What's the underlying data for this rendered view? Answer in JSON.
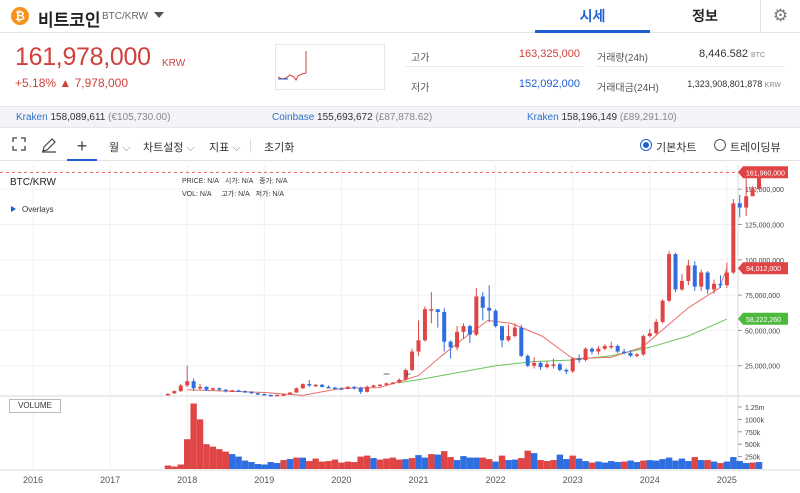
{
  "header": {
    "coin_symbol": "₿",
    "coin_name": "비트코인",
    "pair": "BTC/KRW",
    "tabs": [
      {
        "label": "시세",
        "active": true
      },
      {
        "label": "정보",
        "active": false
      }
    ],
    "settings_icon": "gear-icon"
  },
  "price": {
    "value": "161,978,000",
    "unit": "KRW",
    "change_pct": "+5.18%",
    "change_amt": "▲ 7,978,000"
  },
  "stats": {
    "high_label": "고가",
    "high_value": "163,325,000",
    "low_label": "저가",
    "low_value": "152,092,000",
    "volume_label": "거래량(24h)",
    "volume_value": "8,446.582",
    "volume_unit": "BTC",
    "amount_label": "거래대금(24H)",
    "amount_value": "1,323,908,801,878",
    "amount_unit": "KRW"
  },
  "exchanges": [
    {
      "name": "Kraken",
      "value": "158,089,611",
      "alt": "(€105,730.00)"
    },
    {
      "name": "Coinbase",
      "value": "155,693,672",
      "alt": "(£87,878.62)"
    },
    {
      "name": "Kraken",
      "value": "158,196,149",
      "alt": "(£89,291.10)"
    }
  ],
  "toolbar": {
    "interval": "월",
    "chart_settings": "차트설정",
    "indicators": "지표",
    "reset": "초기화",
    "basic_chart": "기본차트",
    "tradingview": "트레이딩뷰"
  },
  "hud": {
    "price_label": "PRICE:",
    "open_label": "시가:",
    "close_label": "종가:",
    "vol_label": "VOL:",
    "high_label": "고가:",
    "low_label": "저가:",
    "na": "N/A"
  },
  "colors": {
    "up": "#e04545",
    "down": "#2f6ee0",
    "ma_short": "#e8706a",
    "ma_long": "#6cc35a",
    "accent": "#1c5fd1"
  },
  "chart_data": {
    "type": "candlestick",
    "title": "BTC/KRW",
    "overlays_label": "Overlays",
    "volume_label": "VOLUME",
    "x_ticks": [
      "2016",
      "2017",
      "2018",
      "2019",
      "2020",
      "2021",
      "2022",
      "2023",
      "2024",
      "2025"
    ],
    "y_ticks": [
      "150,000,000",
      "125,000,000",
      "100,000,000",
      "75,000,000",
      "50,000,000",
      "25,000,000"
    ],
    "y_range": [
      0,
      165000000
    ],
    "volume_ticks": [
      "1.25m",
      "1000k",
      "750k",
      "500k",
      "250k"
    ],
    "volume_range": [
      0,
      1350000
    ],
    "price_tags": [
      {
        "label": "161,960,000",
        "value": 161960000,
        "color": "#e04545",
        "dashed": true
      },
      {
        "label": "94,012,000",
        "value": 94012000,
        "color": "#e04545",
        "dashed": false
      },
      {
        "label": "58,222,260",
        "value": 58222260,
        "color": "#4cbb3c",
        "dashed": false
      }
    ],
    "series": [
      {
        "name": "BTC/KRW",
        "x_start": 2017.75,
        "step_months": 1,
        "ohlc": [
          [
            5,
            5,
            4.5,
            5.5
          ],
          [
            5.5,
            7,
            5,
            7.5
          ],
          [
            7,
            11,
            6.5,
            12
          ],
          [
            11,
            14,
            10,
            25
          ],
          [
            14,
            9,
            7,
            16
          ],
          [
            9,
            10,
            8,
            12
          ],
          [
            10,
            8,
            7,
            10.5
          ],
          [
            8,
            9,
            7.5,
            9.5
          ],
          [
            9,
            8,
            7,
            9.5
          ],
          [
            8,
            7,
            6,
            8.5
          ],
          [
            7,
            7.5,
            6.5,
            8
          ],
          [
            7.5,
            7,
            6.5,
            8
          ],
          [
            7,
            6.5,
            6,
            7.5
          ],
          [
            6.5,
            5.5,
            5,
            7
          ],
          [
            5.5,
            5,
            4.5,
            6
          ],
          [
            5,
            4.3,
            4,
            5.2
          ],
          [
            4.3,
            4,
            3.5,
            4.6
          ],
          [
            4,
            4.4,
            3.8,
            4.6
          ],
          [
            4.4,
            4.6,
            4.2,
            5
          ],
          [
            4.6,
            6,
            4.4,
            6.2
          ],
          [
            6,
            9,
            5.8,
            9.5
          ],
          [
            9,
            12,
            8.5,
            12.5
          ],
          [
            12,
            11,
            10,
            15
          ],
          [
            11,
            11.5,
            10,
            12
          ],
          [
            11.5,
            10,
            9.5,
            12
          ],
          [
            10,
            9.5,
            9,
            11
          ],
          [
            9.5,
            9,
            8.5,
            10
          ],
          [
            9,
            8.5,
            8,
            9.5
          ],
          [
            8.5,
            10,
            8.3,
            10.5
          ],
          [
            10,
            9.5,
            8,
            10.5
          ],
          [
            9.5,
            6.5,
            5,
            10
          ],
          [
            6.5,
            10,
            6,
            11
          ],
          [
            10,
            11,
            9.5,
            11.5
          ],
          [
            11,
            11.5,
            10.8,
            12
          ],
          [
            11.5,
            12.5,
            11,
            13
          ],
          [
            12.5,
            13,
            12,
            13.5
          ],
          [
            13,
            15,
            12.5,
            16
          ],
          [
            15,
            22,
            14.5,
            23
          ],
          [
            22,
            35,
            21,
            37
          ],
          [
            35,
            43,
            32,
            57
          ],
          [
            43,
            65,
            42,
            67
          ],
          [
            65,
            65,
            55,
            77
          ],
          [
            65,
            63,
            52,
            65
          ],
          [
            63,
            42,
            35,
            66
          ],
          [
            42,
            38,
            30,
            43
          ],
          [
            38,
            49,
            36,
            53
          ],
          [
            49,
            53,
            44,
            55
          ],
          [
            53,
            47,
            41,
            54
          ],
          [
            47,
            74,
            46,
            80
          ],
          [
            74,
            66,
            57,
            77
          ],
          [
            66,
            64,
            56,
            82
          ],
          [
            64,
            53,
            52,
            65
          ],
          [
            53,
            43,
            38,
            53
          ],
          [
            43,
            46,
            42,
            54
          ],
          [
            46,
            52,
            45,
            55
          ],
          [
            52,
            32,
            31,
            54
          ],
          [
            32,
            25,
            24,
            33
          ],
          [
            25,
            27,
            23,
            31
          ],
          [
            27,
            24,
            22,
            28
          ],
          [
            24,
            26,
            23,
            28
          ],
          [
            26,
            26,
            23,
            30
          ],
          [
            26,
            22,
            21,
            27
          ],
          [
            22,
            21,
            19,
            23
          ],
          [
            21,
            30,
            20,
            31
          ],
          [
            30,
            29,
            27,
            33
          ],
          [
            29,
            37,
            28,
            38
          ],
          [
            37,
            35,
            33,
            38
          ],
          [
            35,
            37,
            33,
            39
          ],
          [
            37,
            39,
            36,
            40
          ],
          [
            39,
            39,
            37,
            42
          ],
          [
            39,
            35,
            34,
            40
          ],
          [
            35,
            34,
            33,
            37
          ],
          [
            34,
            32,
            31,
            36
          ],
          [
            32,
            33,
            31,
            34
          ],
          [
            33,
            46,
            32,
            47
          ],
          [
            46,
            48,
            45,
            51
          ],
          [
            48,
            56,
            47,
            58
          ],
          [
            56,
            71,
            55,
            72
          ],
          [
            71,
            104,
            70,
            106
          ],
          [
            104,
            79,
            77,
            105
          ],
          [
            79,
            85,
            78,
            90
          ],
          [
            85,
            96,
            82,
            100
          ],
          [
            96,
            81,
            78,
            99
          ],
          [
            81,
            91,
            78,
            93
          ],
          [
            91,
            79,
            76,
            92
          ],
          [
            79,
            83,
            76,
            86
          ],
          [
            83,
            82,
            80,
            89
          ],
          [
            82,
            91,
            80,
            98
          ],
          [
            91,
            140,
            90,
            143
          ],
          [
            140,
            137,
            130,
            146
          ],
          [
            137,
            145,
            131,
            162
          ],
          [
            145,
            150,
            145,
            152
          ],
          [
            150,
            162,
            150,
            163
          ]
        ],
        "volume": [
          [
            70,
            1
          ],
          [
            50,
            1
          ],
          [
            90,
            1
          ],
          [
            600,
            1
          ],
          [
            1320,
            1
          ],
          [
            1000,
            1
          ],
          [
            500,
            1
          ],
          [
            450,
            1
          ],
          [
            400,
            1
          ],
          [
            350,
            1
          ],
          [
            300,
            0
          ],
          [
            250,
            0
          ],
          [
            170,
            0
          ],
          [
            140,
            0
          ],
          [
            100,
            0
          ],
          [
            90,
            0
          ],
          [
            140,
            0
          ],
          [
            120,
            0
          ],
          [
            180,
            1
          ],
          [
            200,
            0
          ],
          [
            230,
            1
          ],
          [
            230,
            0
          ],
          [
            160,
            1
          ],
          [
            210,
            1
          ],
          [
            150,
            1
          ],
          [
            160,
            1
          ],
          [
            190,
            1
          ],
          [
            130,
            1
          ],
          [
            150,
            1
          ],
          [
            140,
            1
          ],
          [
            250,
            1
          ],
          [
            270,
            1
          ],
          [
            220,
            0
          ],
          [
            190,
            1
          ],
          [
            210,
            1
          ],
          [
            230,
            1
          ],
          [
            190,
            1
          ],
          [
            200,
            0
          ],
          [
            220,
            1
          ],
          [
            280,
            0
          ],
          [
            230,
            0
          ],
          [
            300,
            1
          ],
          [
            290,
            0
          ],
          [
            360,
            1
          ],
          [
            240,
            1
          ],
          [
            180,
            0
          ],
          [
            260,
            0
          ],
          [
            230,
            0
          ],
          [
            230,
            0
          ],
          [
            230,
            1
          ],
          [
            200,
            1
          ],
          [
            150,
            0
          ],
          [
            270,
            1
          ],
          [
            180,
            0
          ],
          [
            190,
            0
          ],
          [
            220,
            1
          ],
          [
            370,
            1
          ],
          [
            320,
            0
          ],
          [
            180,
            1
          ],
          [
            160,
            1
          ],
          [
            180,
            1
          ],
          [
            290,
            0
          ],
          [
            200,
            0
          ],
          [
            270,
            1
          ],
          [
            210,
            0
          ],
          [
            160,
            0
          ],
          [
            130,
            1
          ],
          [
            150,
            0
          ],
          [
            130,
            0
          ],
          [
            160,
            0
          ],
          [
            140,
            0
          ],
          [
            150,
            1
          ],
          [
            170,
            0
          ],
          [
            140,
            0
          ],
          [
            170,
            1
          ],
          [
            180,
            0
          ],
          [
            170,
            0
          ],
          [
            200,
            0
          ],
          [
            230,
            0
          ],
          [
            170,
            0
          ],
          [
            210,
            0
          ],
          [
            160,
            0
          ],
          [
            240,
            1
          ],
          [
            180,
            0
          ],
          [
            180,
            1
          ],
          [
            150,
            0
          ],
          [
            120,
            1
          ],
          [
            150,
            0
          ],
          [
            240,
            0
          ],
          [
            160,
            0
          ],
          [
            120,
            0
          ],
          [
            130,
            1
          ],
          [
            140,
            0
          ]
        ]
      }
    ],
    "ma_short": [
      [
        2018.0,
        8
      ],
      [
        2019.0,
        6
      ],
      [
        2019.5,
        4
      ],
      [
        2020.0,
        9
      ],
      [
        2020.5,
        9.5
      ],
      [
        2021.0,
        18
      ],
      [
        2021.3,
        32
      ],
      [
        2021.6,
        45
      ],
      [
        2021.9,
        57
      ],
      [
        2022.2,
        55
      ],
      [
        2022.6,
        46
      ],
      [
        2023.0,
        30
      ],
      [
        2023.5,
        31
      ],
      [
        2023.9,
        38
      ],
      [
        2024.2,
        52
      ],
      [
        2024.5,
        66
      ],
      [
        2024.9,
        80
      ],
      [
        2025.0,
        94
      ]
    ],
    "ma_long": [
      [
        2020.75,
        13
      ],
      [
        2021.0,
        15
      ],
      [
        2021.5,
        20
      ],
      [
        2022.0,
        25
      ],
      [
        2022.5,
        28
      ],
      [
        2023.0,
        29
      ],
      [
        2023.5,
        32
      ],
      [
        2024.0,
        38
      ],
      [
        2024.5,
        46
      ],
      [
        2025.0,
        58
      ]
    ]
  }
}
